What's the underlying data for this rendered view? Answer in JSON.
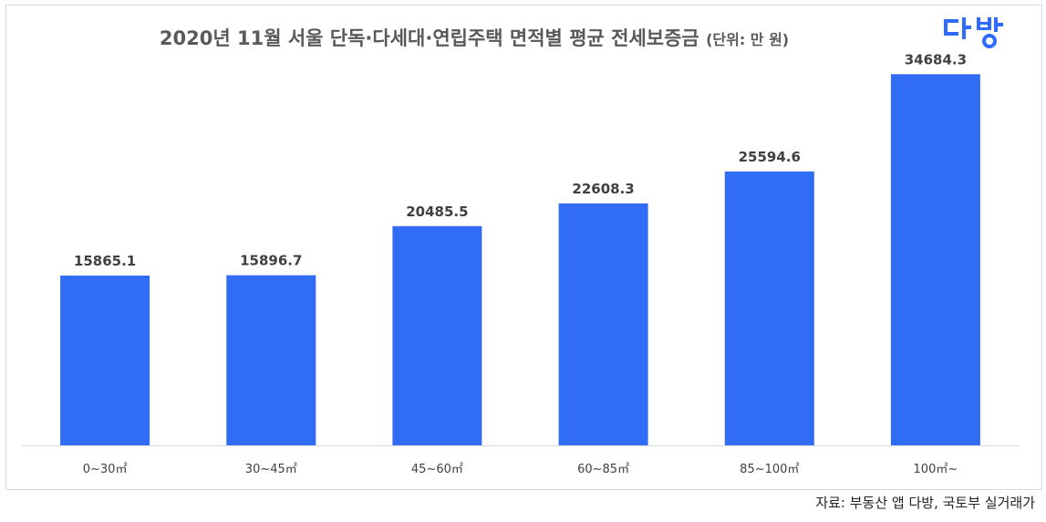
{
  "title": "2020년 11월 서울 단독·다세대·연립주택 면적별 평균 전세보증금",
  "title_unit": "(단위: 만 원)",
  "logo": {
    "text": "다방",
    "color": "#2f6bff"
  },
  "source": "자료: 부동산 앱 다방, 국토부 실거래가",
  "colors": {
    "bar": "#316cf4",
    "axis": "#d9d9d9",
    "label": "#404040",
    "tick": "#404040"
  },
  "chart_data": {
    "type": "bar",
    "categories": [
      "0~30㎡",
      "30~45㎡",
      "45~60㎡",
      "60~85㎡",
      "85~100㎡",
      "100㎡~"
    ],
    "values": [
      15865.1,
      15896.7,
      20485.5,
      22608.3,
      25594.6,
      34684.3
    ],
    "title": "2020년 11월 서울 단독·다세대·연립주택 면적별 평균 전세보증금",
    "ylim": [
      0,
      36500
    ],
    "grid": false,
    "legend": "none",
    "data_labels": true
  }
}
